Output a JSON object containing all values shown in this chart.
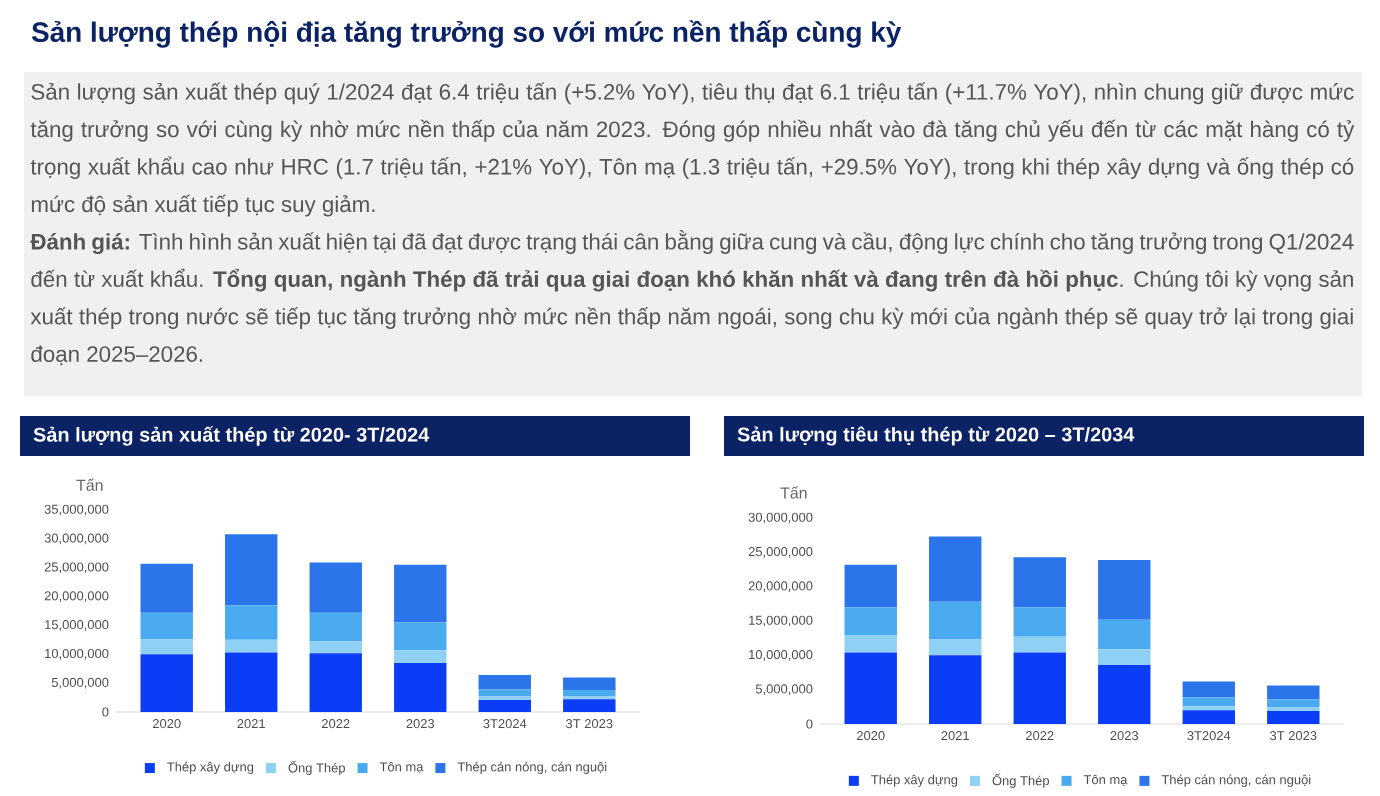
{
  "chart_data": [
    {
      "type": "other",
      "title": "Sản lượng thép nội địa tăng trưởng so với mức nền thấp cùng kỳ",
      "annotations": [
        "Sản lượng sản xuất thép quý 1/2024 đạt 6.4 triệu tấn (+5.2% YoY), tiêu thụ đạt 6.1 triệu tấn (+11.7% YoY), nhìn chung giữ được mức tăng trưởng so với cùng kỳ nhờ mức nền thấp của năm 2023. Đóng góp nhiều nhất vào đà tăng chủ yếu đến từ các mặt hàng có tỷ trọng xuất khẩu cao như HRC (1.7 triệu tấn, +21% YoY), Tôn mạ (1.3 triệu tấn, +29.5% YoY), trong khi thép xây dựng và ống thép có mức độ sản xuất tiếp tục suy giảm.",
        "**Đánh giá:** Tình hình sản xuất hiện tại đã đạt được trạng thái cân bằng giữa cung và cầu, động lực chính cho tăng trưởng trong Q1/2024 đến từ xuất khẩu. **Tổng quan, ngành Thép đã trải qua giai đoạn khó khăn nhất và đang trên đà hồi phục**. Chúng tôi kỳ vọng sản xuất thép trong nước sẽ tiếp tục tăng trưởng nhờ mức nền thấp năm ngoái, song chu kỳ mới của ngành thép sẽ quay trở lại trong giai đoạn 2025–2026."
      ]
    },
    {
      "type": "bar",
      "title": "Sản lượng sản xuất thép từ 2020- 3T/2024",
      "ylabel": "Tấn",
      "stacked": true,
      "legend": "bottom",
      "categories": [
        "2020",
        "2021",
        "2022",
        "2023",
        "3T2024",
        "3T 2023"
      ],
      "ylim": [
        0,
        35000000
      ],
      "yticks": [
        0,
        {
          "value": 5000000,
          "label": "5,000,000"
        },
        {
          "value": 10000000,
          "label": "10,000,000"
        },
        {
          "value": 15000000,
          "label": "15,000,000"
        },
        {
          "value": 20000000,
          "label": "20,000,000"
        },
        {
          "value": 25000000,
          "label": "25,000,000"
        },
        {
          "value": 30000000,
          "label": "30,000,000"
        },
        {
          "value": 35000000,
          "label": "35,000,000"
        }
      ],
      "series": [
        {
          "name": "Thép xây dựng",
          "color": "#0b3cf6",
          "values": [
            10000000,
            10300000,
            10200000,
            8500000,
            2100000,
            2200000
          ]
        },
        {
          "name": "Ống Thép",
          "color": "#8fd0f5",
          "values": [
            2600000,
            2200000,
            2000000,
            2200000,
            600000,
            500000
          ]
        },
        {
          "name": "Tôn mạ",
          "color": "#4aaaf0",
          "values": [
            4600000,
            6000000,
            5000000,
            4800000,
            1200000,
            1100000
          ]
        },
        {
          "name": "Thép cán nóng, cán nguội",
          "color": "#2b74ea",
          "values": [
            8500000,
            12300000,
            8700000,
            10000000,
            2500000,
            2200000
          ]
        }
      ]
    },
    {
      "type": "bar",
      "title": "Sản lượng tiêu thụ thép từ 2020 – 3T/2034",
      "ylabel": "Tấn",
      "stacked": true,
      "legend": "bottom",
      "categories": [
        "2020",
        "2021",
        "2022",
        "2023",
        "3T2024",
        "3T 2023"
      ],
      "ylim": [
        0,
        30000000
      ],
      "yticks": [
        0,
        {
          "value": 5000000,
          "label": "5,000,000"
        },
        {
          "value": 10000000,
          "label": "10,000,000"
        },
        {
          "value": 15000000,
          "label": "15,000,000"
        },
        {
          "value": 20000000,
          "label": "20,000,000"
        },
        {
          "value": 25000000,
          "label": "25,000,000"
        },
        {
          "value": 30000000,
          "label": "30,000,000"
        }
      ],
      "series": [
        {
          "name": "Thép xây dựng",
          "color": "#0b3cf6",
          "values": [
            10400000,
            10000000,
            10400000,
            8600000,
            2000000,
            1900000
          ]
        },
        {
          "name": "Ống Thép",
          "color": "#8fd0f5",
          "values": [
            2500000,
            2300000,
            2300000,
            2300000,
            600000,
            500000
          ]
        },
        {
          "name": "Tôn mạ",
          "color": "#4aaaf0",
          "values": [
            4100000,
            5500000,
            4300000,
            4300000,
            1300000,
            1200000
          ]
        },
        {
          "name": "Thép cán nóng, cán nguội",
          "color": "#2b74ea",
          "values": [
            6200000,
            9500000,
            7300000,
            8700000,
            2300000,
            2000000
          ]
        }
      ]
    }
  ]
}
